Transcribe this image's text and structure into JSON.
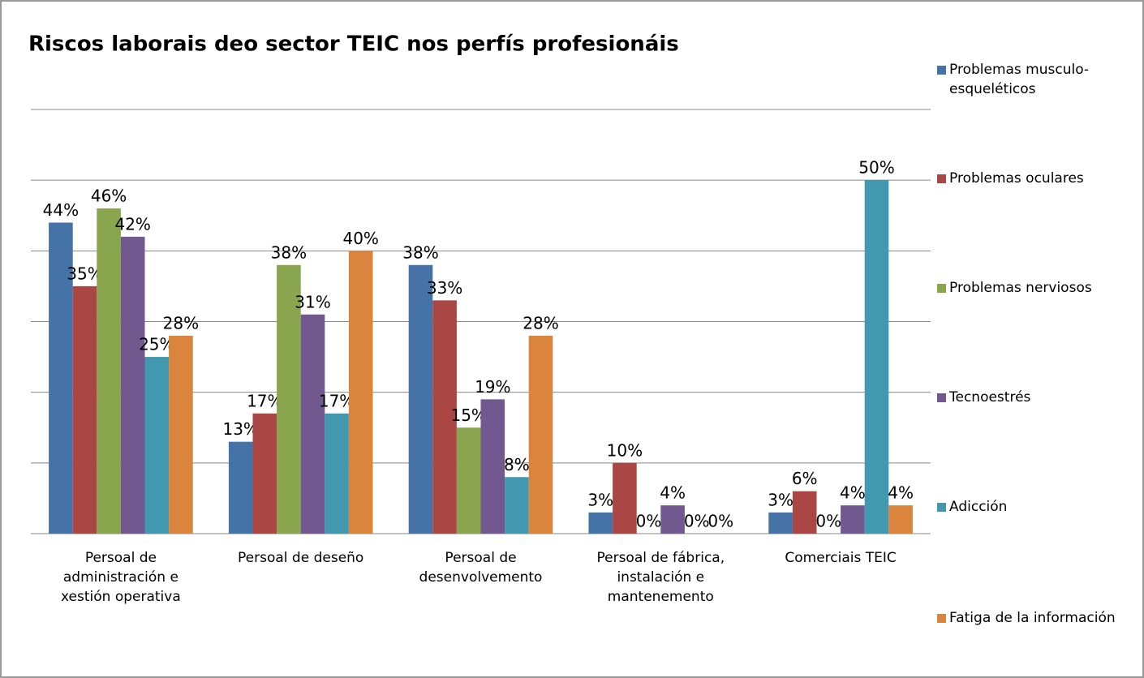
{
  "chart_data": {
    "type": "bar",
    "title": "Riscos laborais deo sector TEIC nos perfís profesionáis",
    "categories": [
      "Persoal de administración e xestión operativa",
      "Persoal de deseño",
      "Persoal de desenvolvemento",
      "Persoal de fábrica, instalación e mantenemento",
      "Comerciais TEIC"
    ],
    "series": [
      {
        "name": "Problemas musculo-esqueléticos",
        "color": "#4572a7",
        "values": [
          44,
          13,
          38,
          3,
          3
        ],
        "value_labels": [
          "44%",
          "13%",
          "38%",
          "3%",
          "3%"
        ]
      },
      {
        "name": "Problemas oculares",
        "color": "#aa4643",
        "values": [
          35,
          17,
          33,
          10,
          6
        ],
        "value_labels": [
          "35%",
          "17%",
          "33%",
          "10%",
          "6%"
        ]
      },
      {
        "name": "Problemas nerviosos",
        "color": "#89a54e",
        "values": [
          46,
          38,
          15,
          0,
          0
        ],
        "value_labels": [
          "46%",
          "38%",
          "15%",
          "0%",
          "0%"
        ]
      },
      {
        "name": "Tecnoestrés",
        "color": "#71588f",
        "values": [
          42,
          31,
          19,
          4,
          4
        ],
        "value_labels": [
          "42%",
          "31%",
          "19%",
          "4%",
          "4%"
        ]
      },
      {
        "name": "Adicción",
        "color": "#4198af",
        "values": [
          25,
          17,
          8,
          0,
          50
        ],
        "value_labels": [
          "25%",
          "17%",
          "8%",
          "0%",
          "50%"
        ]
      },
      {
        "name": "Fatiga de la información",
        "color": "#db843d",
        "values": [
          28,
          40,
          28,
          0,
          4
        ],
        "value_labels": [
          "28%",
          "40%",
          "28%",
          "0%",
          "4%"
        ]
      }
    ],
    "ylim": [
      0,
      60
    ],
    "yticks": [
      0,
      10,
      20,
      30,
      40,
      50,
      60
    ],
    "grid": true,
    "legend": "right"
  }
}
